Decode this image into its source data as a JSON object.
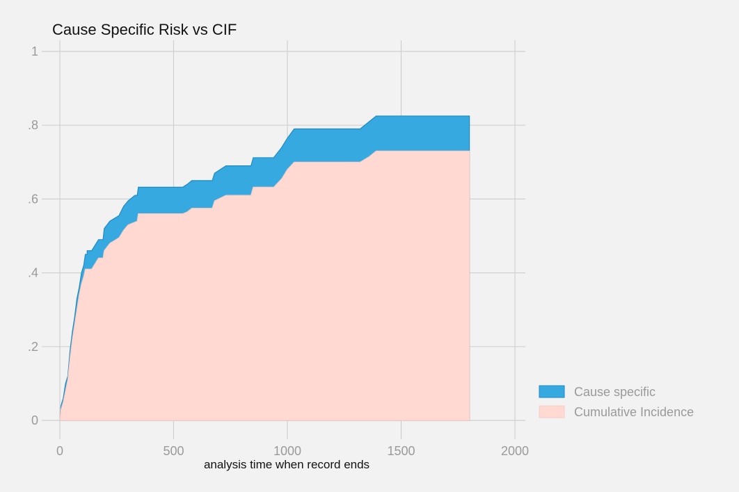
{
  "chart_data": {
    "type": "area",
    "title": "Cause Specific Risk vs CIF",
    "xlabel": "analysis time when record ends",
    "ylabel": "",
    "xlim": [
      0,
      2000
    ],
    "ylim": [
      0,
      1
    ],
    "grid": true,
    "legend_position": "bottom-right",
    "x_ticks": [
      0,
      500,
      1000,
      1500,
      2000
    ],
    "x_tick_labels": [
      "0",
      "500",
      "1000",
      "1500",
      "2000"
    ],
    "y_ticks": [
      0,
      0.2,
      0.4,
      0.6,
      0.8,
      1
    ],
    "y_tick_labels": [
      "0",
      ".2",
      ".4",
      ".6",
      ".8",
      "1"
    ],
    "series": [
      {
        "name": "Cause specific",
        "color": "#36a9e1",
        "stroke": "#1f8ac4",
        "points": [
          [
            0,
            0.0
          ],
          [
            5,
            0.04
          ],
          [
            15,
            0.06
          ],
          [
            25,
            0.1
          ],
          [
            35,
            0.12
          ],
          [
            45,
            0.19
          ],
          [
            55,
            0.24
          ],
          [
            65,
            0.28
          ],
          [
            75,
            0.33
          ],
          [
            85,
            0.36
          ],
          [
            95,
            0.4
          ],
          [
            105,
            0.42
          ],
          [
            112,
            0.45
          ],
          [
            120,
            0.45
          ],
          [
            120,
            0.46
          ],
          [
            140,
            0.46
          ],
          [
            150,
            0.47
          ],
          [
            170,
            0.49
          ],
          [
            190,
            0.49
          ],
          [
            195,
            0.52
          ],
          [
            220,
            0.54
          ],
          [
            260,
            0.555
          ],
          [
            280,
            0.58
          ],
          [
            300,
            0.595
          ],
          [
            330,
            0.61
          ],
          [
            340,
            0.61
          ],
          [
            345,
            0.632
          ],
          [
            540,
            0.632
          ],
          [
            560,
            0.64
          ],
          [
            580,
            0.65
          ],
          [
            670,
            0.65
          ],
          [
            680,
            0.67
          ],
          [
            730,
            0.69
          ],
          [
            840,
            0.69
          ],
          [
            850,
            0.712
          ],
          [
            940,
            0.712
          ],
          [
            975,
            0.74
          ],
          [
            1000,
            0.765
          ],
          [
            1030,
            0.79
          ],
          [
            1320,
            0.79
          ],
          [
            1360,
            0.81
          ],
          [
            1390,
            0.825
          ],
          [
            1800,
            0.825
          ]
        ]
      },
      {
        "name": "Cumulative Incidence",
        "color": "#ffd9d2",
        "stroke": "#f7cdc4",
        "points": [
          [
            0,
            0.0
          ],
          [
            5,
            0.03
          ],
          [
            15,
            0.05
          ],
          [
            25,
            0.08
          ],
          [
            35,
            0.11
          ],
          [
            45,
            0.17
          ],
          [
            55,
            0.22
          ],
          [
            65,
            0.26
          ],
          [
            75,
            0.3
          ],
          [
            85,
            0.34
          ],
          [
            95,
            0.37
          ],
          [
            105,
            0.39
          ],
          [
            112,
            0.41
          ],
          [
            140,
            0.41
          ],
          [
            150,
            0.42
          ],
          [
            170,
            0.44
          ],
          [
            190,
            0.44
          ],
          [
            195,
            0.46
          ],
          [
            220,
            0.48
          ],
          [
            260,
            0.495
          ],
          [
            280,
            0.515
          ],
          [
            300,
            0.53
          ],
          [
            340,
            0.54
          ],
          [
            345,
            0.56
          ],
          [
            540,
            0.56
          ],
          [
            560,
            0.565
          ],
          [
            580,
            0.575
          ],
          [
            670,
            0.575
          ],
          [
            680,
            0.595
          ],
          [
            730,
            0.61
          ],
          [
            840,
            0.61
          ],
          [
            850,
            0.632
          ],
          [
            940,
            0.632
          ],
          [
            975,
            0.655
          ],
          [
            1000,
            0.68
          ],
          [
            1030,
            0.7
          ],
          [
            1320,
            0.7
          ],
          [
            1360,
            0.715
          ],
          [
            1390,
            0.73
          ],
          [
            1800,
            0.73
          ]
        ]
      }
    ]
  }
}
